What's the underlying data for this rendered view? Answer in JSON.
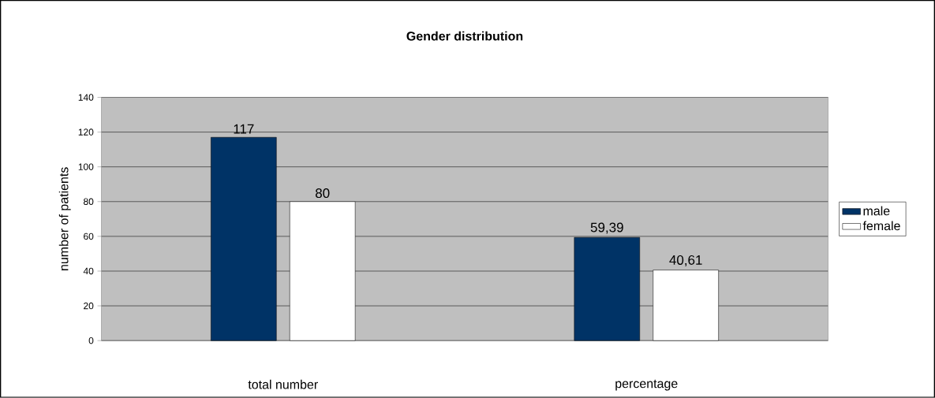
{
  "chart_data": {
    "type": "bar",
    "title": "Gender distribution",
    "ylabel": "number of patients",
    "categories": [
      "total number",
      "percentage"
    ],
    "series": [
      {
        "name": "male",
        "color": "#003366",
        "values": [
          117,
          59.39
        ],
        "value_labels": [
          "117",
          "59,39"
        ]
      },
      {
        "name": "female",
        "color": "#ffffff",
        "values": [
          80,
          40.61
        ],
        "value_labels": [
          "80",
          "40,61"
        ]
      }
    ],
    "ylim": [
      0,
      140
    ],
    "yticks": [
      0,
      20,
      40,
      60,
      80,
      100,
      120,
      140
    ],
    "grid": "y",
    "legend": "right"
  }
}
